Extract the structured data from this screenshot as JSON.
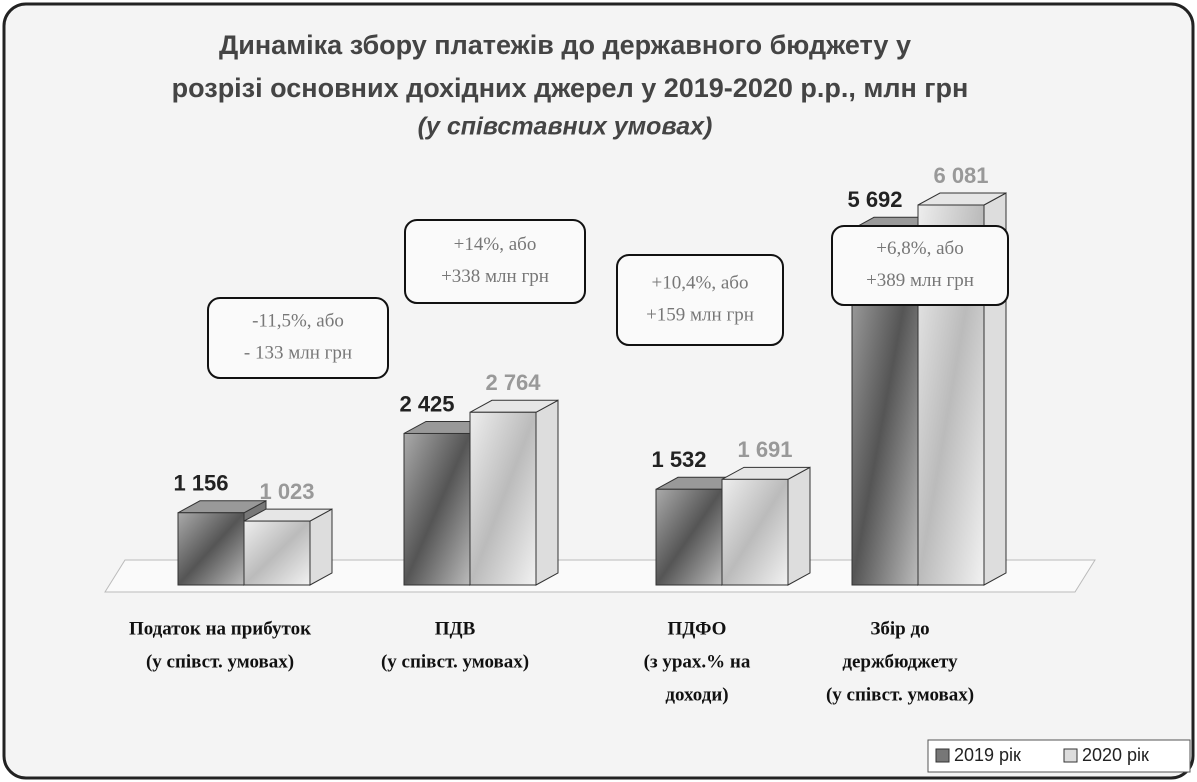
{
  "chart_data": {
    "type": "bar3d",
    "title": [
      "Динаміка збору платежів до державного бюджету у",
      "розрізі основних дохідних джерел у 2019-2020 р.р., млн грн"
    ],
    "subtitle": "(у співставних умовах)",
    "categories": [
      [
        "Податок на прибуток",
        "(у співст. умовах)"
      ],
      [
        "ПДВ",
        "(у співст. умовах)"
      ],
      [
        "ПДФО",
        "(з урах.% на",
        "доходи)"
      ],
      [
        "Збір до",
        "держбюджету",
        "(у співст. умовах)"
      ]
    ],
    "series": [
      {
        "name": "2019 рік",
        "color": "#8a8a8a",
        "values": [
          1156,
          2425,
          1532,
          5692
        ],
        "value_labels": [
          "1 156",
          "2 425",
          "1 532",
          "5 692"
        ]
      },
      {
        "name": "2020 рік",
        "color": "#c8c8c8",
        "values": [
          1023,
          2764,
          1691,
          6081
        ],
        "value_labels": [
          "1 023",
          "2 764",
          "1 691",
          "6 081"
        ]
      }
    ],
    "annotations": [
      [
        "-11,5%, або",
        "- 133 млн грн"
      ],
      [
        "+14%, або",
        "+338 млн грн"
      ],
      [
        "+10,4%, або",
        "+159 млн грн"
      ],
      [
        "+6,8%, або",
        "+389 млн грн"
      ]
    ],
    "legend": "bottom-right"
  }
}
